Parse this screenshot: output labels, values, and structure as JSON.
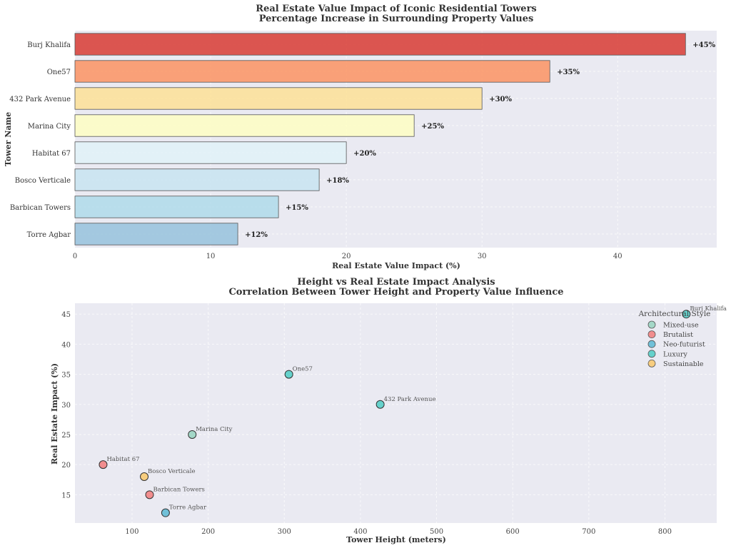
{
  "chart_data": [
    {
      "type": "bar",
      "orientation": "horizontal",
      "title": "Real Estate Value Impact of Iconic Residential Towers",
      "subtitle": "Percentage Increase in Surrounding Property Values",
      "xlabel": "Real Estate Value Impact (%)",
      "ylabel": "Tower Name",
      "xlim": [
        0,
        47.3
      ],
      "xticks": [
        0,
        10,
        20,
        30,
        40
      ],
      "grid": true,
      "categories": [
        "Burj Khalifa",
        "One57",
        "432 Park Avenue",
        "Marina City",
        "Habitat 67",
        "Bosco Verticale",
        "Barbican Towers",
        "Torre Agbar"
      ],
      "values": [
        45,
        35,
        30,
        25,
        20,
        18,
        15,
        12
      ],
      "data_labels": [
        "+45%",
        "+35%",
        "+30%",
        "+25%",
        "+20%",
        "+18%",
        "+15%",
        "+12%"
      ],
      "colors": [
        "#d73027",
        "#fc8d59",
        "#fee090",
        "#ffffbf",
        "#e0f3f8",
        "#c5e4f0",
        "#abd9e9",
        "#91bfdb"
      ]
    },
    {
      "type": "scatter",
      "title": "Height vs Real Estate Impact Analysis",
      "subtitle": "Correlation Between Tower Height and Property Value Influence",
      "xlabel": "Tower Height (meters)",
      "ylabel": "Real Estate Impact (%)",
      "xlim": [
        25,
        868
      ],
      "ylim": [
        10.3,
        46.8
      ],
      "xticks": [
        100,
        200,
        300,
        400,
        500,
        600,
        700,
        800
      ],
      "yticks": [
        15,
        20,
        25,
        30,
        35,
        40,
        45
      ],
      "grid": true,
      "legend": {
        "title": "Architectural Style",
        "placement": "top-right",
        "entries": [
          {
            "name": "Mixed-use",
            "color": "#96d4c0"
          },
          {
            "name": "Brutalist",
            "color": "#f27c7c"
          },
          {
            "name": "Neo-futurist",
            "color": "#5bb8d4"
          },
          {
            "name": "Luxury",
            "color": "#4ecdc4"
          },
          {
            "name": "Sustainable",
            "color": "#f9c86b"
          }
        ]
      },
      "points": [
        {
          "label": "Burj Khalifa",
          "x": 828,
          "y": 45,
          "style": "Luxury"
        },
        {
          "label": "One57",
          "x": 306,
          "y": 35,
          "style": "Luxury"
        },
        {
          "label": "432 Park Avenue",
          "x": 426,
          "y": 30,
          "style": "Luxury"
        },
        {
          "label": "Marina City",
          "x": 179,
          "y": 25,
          "style": "Mixed-use"
        },
        {
          "label": "Habitat 67",
          "x": 62,
          "y": 20,
          "style": "Brutalist"
        },
        {
          "label": "Bosco Verticale",
          "x": 116,
          "y": 18,
          "style": "Sustainable"
        },
        {
          "label": "Barbican Towers",
          "x": 123,
          "y": 15,
          "style": "Brutalist"
        },
        {
          "label": "Torre Agbar",
          "x": 144,
          "y": 12,
          "style": "Neo-futurist"
        }
      ]
    }
  ]
}
